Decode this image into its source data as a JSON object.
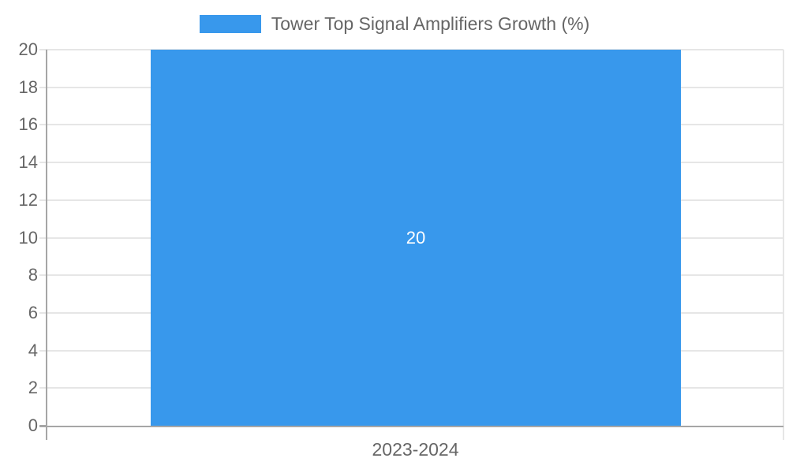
{
  "chart_data": {
    "type": "bar",
    "title": "",
    "legend": {
      "position": "top",
      "entries": [
        "Tower Top Signal Amplifiers Growth (%)"
      ]
    },
    "categories": [
      "2023-2024"
    ],
    "series": [
      {
        "name": "Tower Top Signal Amplifiers Growth (%)",
        "values": [
          20
        ]
      }
    ],
    "bar_value_label": "20",
    "xlabel": "",
    "ylabel": "",
    "ylim": [
      0,
      20
    ],
    "yticks": [
      0,
      2,
      4,
      6,
      8,
      10,
      12,
      14,
      16,
      18,
      20
    ],
    "grid": true,
    "colors": {
      "bar": "#3898EC",
      "text": "#666666",
      "grid": "#E6E6E6",
      "axis": "#A6A6A6",
      "bar_label": "#FFFFFF",
      "background": "#FFFFFF"
    }
  }
}
